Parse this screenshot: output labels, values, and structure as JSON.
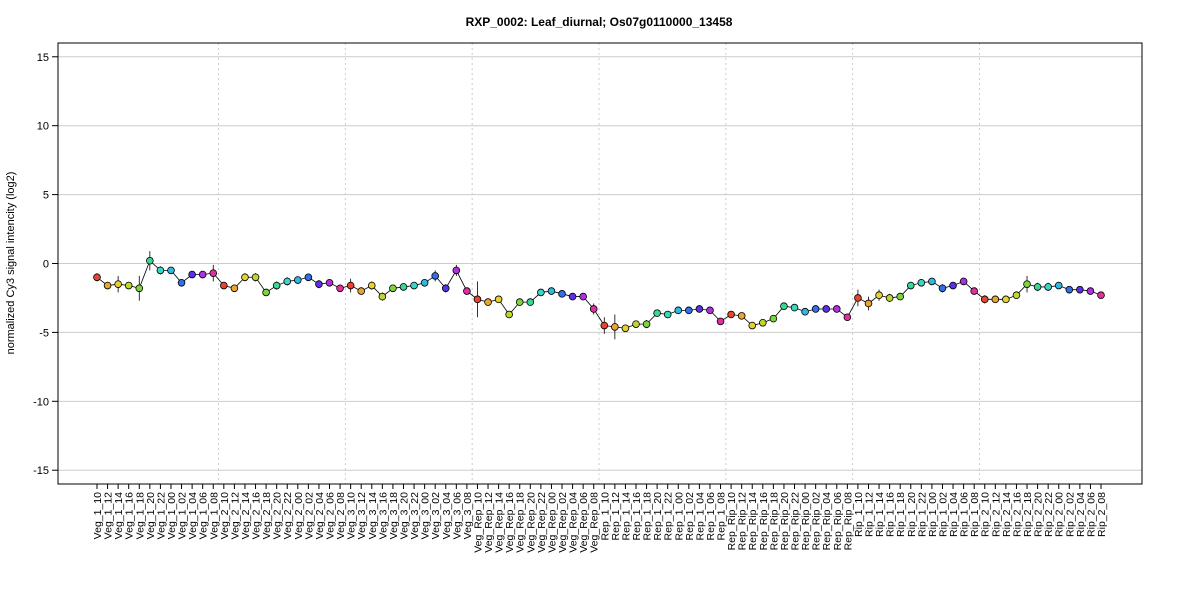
{
  "chart_data": {
    "type": "line",
    "title": "RXP_0002: Leaf_diurnal; Os07g0110000_13458",
    "xlabel": "",
    "ylabel": "normalized Cy3 signal intencity (log2)",
    "ylim": [
      -16,
      16
    ],
    "yticks": [
      -15,
      -10,
      -5,
      0,
      5,
      10,
      15
    ],
    "grid": true,
    "categories": [
      "Veg_1_10",
      "Veg_1_12",
      "Veg_1_14",
      "Veg_1_16",
      "Veg_1_18",
      "Veg_1_20",
      "Veg_1_22",
      "Veg_1_00",
      "Veg_1_02",
      "Veg_1_04",
      "Veg_1_06",
      "Veg_1_08",
      "Veg_2_10",
      "Veg_2_12",
      "Veg_2_14",
      "Veg_2_16",
      "Veg_2_18",
      "Veg_2_20",
      "Veg_2_22",
      "Veg_2_00",
      "Veg_2_02",
      "Veg_2_04",
      "Veg_2_06",
      "Veg_2_08",
      "Veg_3_10",
      "Veg_3_12",
      "Veg_3_14",
      "Veg_3_16",
      "Veg_3_18",
      "Veg_3_20",
      "Veg_3_22",
      "Veg_3_00",
      "Veg_3_02",
      "Veg_3_04",
      "Veg_3_06",
      "Veg_3_08",
      "Veg_Rep_10",
      "Veg_Rep_12",
      "Veg_Rep_14",
      "Veg_Rep_16",
      "Veg_Rep_18",
      "Veg_Rep_20",
      "Veg_Rep_22",
      "Veg_Rep_00",
      "Veg_Rep_02",
      "Veg_Rep_04",
      "Veg_Rep_06",
      "Veg_Rep_08",
      "Rep_1_10",
      "Rep_1_12",
      "Rep_1_14",
      "Rep_1_16",
      "Rep_1_18",
      "Rep_1_20",
      "Rep_1_22",
      "Rep_1_00",
      "Rep_1_02",
      "Rep_1_04",
      "Rep_1_06",
      "Rep_1_08",
      "Rep_Rip_10",
      "Rep_Rip_12",
      "Rep_Rip_14",
      "Rep_Rip_16",
      "Rep_Rip_18",
      "Rep_Rip_20",
      "Rep_Rip_22",
      "Rep_Rip_00",
      "Rep_Rip_02",
      "Rep_Rip_04",
      "Rep_Rip_06",
      "Rep_Rip_08",
      "Rip_1_10",
      "Rip_1_12",
      "Rip_1_14",
      "Rip_1_16",
      "Rip_1_18",
      "Rip_1_20",
      "Rip_1_22",
      "Rip_1_00",
      "Rip_1_02",
      "Rip_1_04",
      "Rip_1_06",
      "Rip_1_08",
      "Rip_2_10",
      "Rip_2_12",
      "Rip_2_14",
      "Rip_2_16",
      "Rip_2_18",
      "Rip_2_20",
      "Rip_2_22",
      "Rip_2_00",
      "Rip_2_02",
      "Rip_2_04",
      "Rip_2_06",
      "Rip_2_08"
    ],
    "series": [
      {
        "values": [
          -1.0,
          -1.6,
          -1.5,
          -1.6,
          -1.8,
          0.2,
          -0.5,
          -0.5,
          -1.4,
          -0.8,
          -0.8,
          -0.7,
          -1.6,
          -1.8,
          -1.0,
          -1.0,
          -2.1,
          -1.6,
          -1.3,
          -1.2,
          -1.0,
          -1.5,
          -1.4,
          -1.8,
          -1.6,
          -2.0,
          -1.6,
          -2.4,
          -1.8,
          -1.7,
          -1.6,
          -1.4,
          -0.9,
          -1.8,
          -0.5,
          -2.0,
          -2.6,
          -2.8,
          -2.6,
          -3.7,
          -2.8,
          -2.8,
          -2.1,
          -2.0,
          -2.2,
          -2.4,
          -2.4,
          -3.3,
          -4.5,
          -4.6,
          -4.7,
          -4.4,
          -4.4,
          -3.6,
          -3.7,
          -3.4,
          -3.4,
          -3.3,
          -3.4,
          -4.2,
          -3.7,
          -3.8,
          -4.5,
          -4.3,
          -4.0,
          -3.1,
          -3.2,
          -3.5,
          -3.3,
          -3.3,
          -3.3,
          -3.9,
          -2.5,
          -2.9,
          -2.3,
          -2.5,
          -2.4,
          -1.6,
          -1.4,
          -1.3,
          -1.8,
          -1.6,
          -1.3,
          -2.0,
          -2.6,
          -2.6,
          -2.6,
          -2.3,
          -1.5,
          -1.7,
          -1.7,
          -1.6,
          -1.9,
          -1.9,
          -2.0,
          -2.3
        ],
        "errors": [
          0.3,
          0.2,
          0.6,
          0.2,
          0.9,
          0.7,
          0.3,
          0.1,
          0.2,
          0.1,
          0.1,
          0.6,
          0.2,
          0.2,
          0.3,
          0.3,
          0.2,
          0.3,
          0.3,
          0.2,
          0.1,
          0.3,
          0.2,
          0.2,
          0.5,
          0.2,
          0.3,
          0.3,
          0.2,
          0.2,
          0.2,
          0.2,
          0.4,
          0.3,
          0.4,
          0.2,
          1.3,
          0.2,
          0.2,
          0.2,
          0.2,
          0.2,
          0.2,
          0.2,
          0.2,
          0.2,
          0.2,
          0.4,
          0.6,
          0.9,
          0.2,
          0.2,
          0.3,
          0.2,
          0.2,
          0.2,
          0.2,
          0.2,
          0.2,
          0.2,
          0.2,
          0.2,
          0.2,
          0.2,
          0.2,
          0.2,
          0.2,
          0.2,
          0.2,
          0.2,
          0.2,
          0.2,
          0.6,
          0.5,
          0.4,
          0.3,
          0.2,
          0.2,
          0.2,
          0.2,
          0.3,
          0.2,
          0.2,
          0.2,
          0.3,
          0.2,
          0.2,
          0.2,
          0.6,
          0.3,
          0.3,
          0.2,
          0.2,
          0.2,
          0.2,
          0.2
        ]
      }
    ],
    "point_colors": [
      "#e8442e",
      "#e8a630",
      "#e6d130",
      "#c0d630",
      "#7ad63a",
      "#3ad696",
      "#3ad6c4",
      "#30b8e0",
      "#3070e8",
      "#5a30e8",
      "#b030e0",
      "#e030a0"
    ],
    "group_separators_after": [
      12,
      24,
      36,
      48,
      60,
      72,
      84
    ],
    "vline_color": "#cccccc",
    "grid_color": "#cccccc"
  }
}
